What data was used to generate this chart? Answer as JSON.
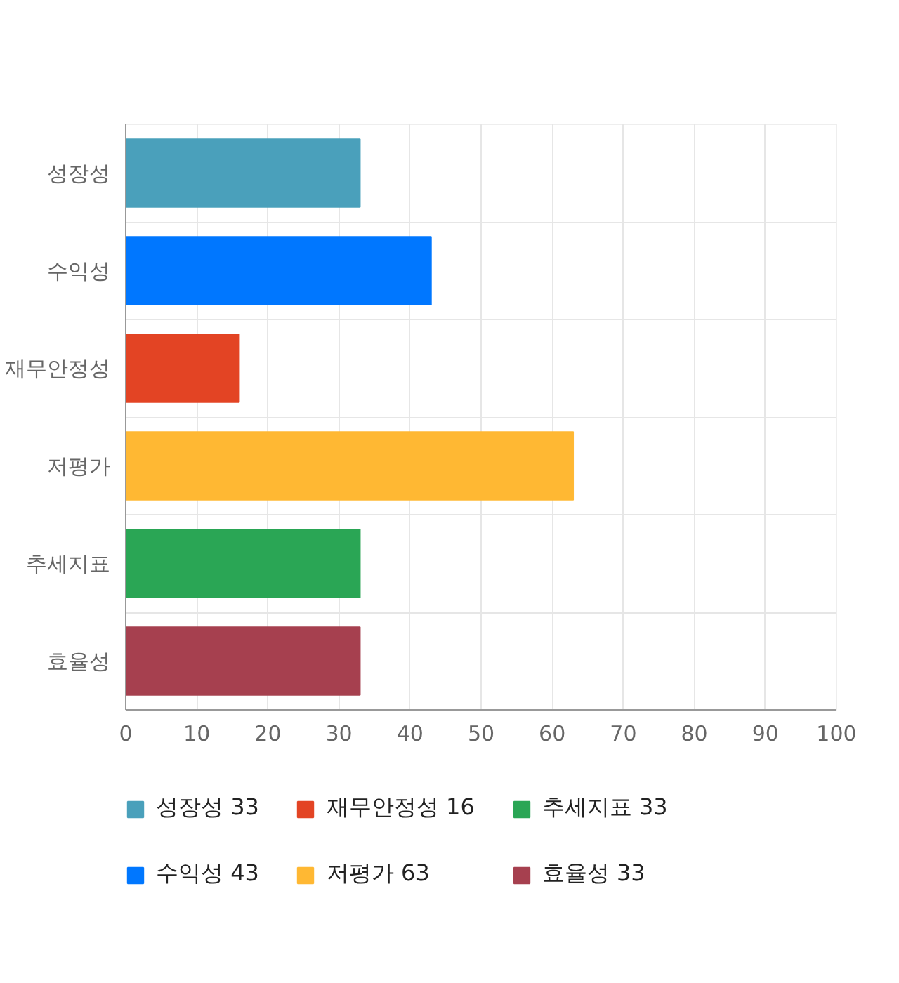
{
  "chart_data": {
    "type": "bar",
    "orientation": "horizontal",
    "categories": [
      "성장성",
      "수익성",
      "재무안정성",
      "저평가",
      "추세지표",
      "효율성"
    ],
    "series": [
      {
        "name": "성장성 33",
        "color": "#4aa0bb",
        "values": [
          33,
          null,
          null,
          null,
          null,
          null
        ]
      },
      {
        "name": "수익성 43",
        "color": "#0077ff",
        "values": [
          null,
          43,
          null,
          null,
          null,
          null
        ]
      },
      {
        "name": "재무안정성 16",
        "color": "#e34424",
        "values": [
          null,
          null,
          16,
          null,
          null,
          null
        ]
      },
      {
        "name": "저평가 63",
        "color": "#ffb833",
        "values": [
          null,
          null,
          null,
          63,
          null,
          null
        ]
      },
      {
        "name": "추세지표 33",
        "color": "#2aa655",
        "values": [
          null,
          null,
          null,
          null,
          33,
          null
        ]
      },
      {
        "name": "효율성 33",
        "color": "#a6404f",
        "values": [
          null,
          null,
          null,
          null,
          null,
          33
        ]
      }
    ],
    "xlim": [
      0,
      100
    ],
    "xticks": [
      0,
      10,
      20,
      30,
      40,
      50,
      60,
      70,
      80,
      90,
      100
    ],
    "grid": true,
    "legend": "bottom"
  }
}
